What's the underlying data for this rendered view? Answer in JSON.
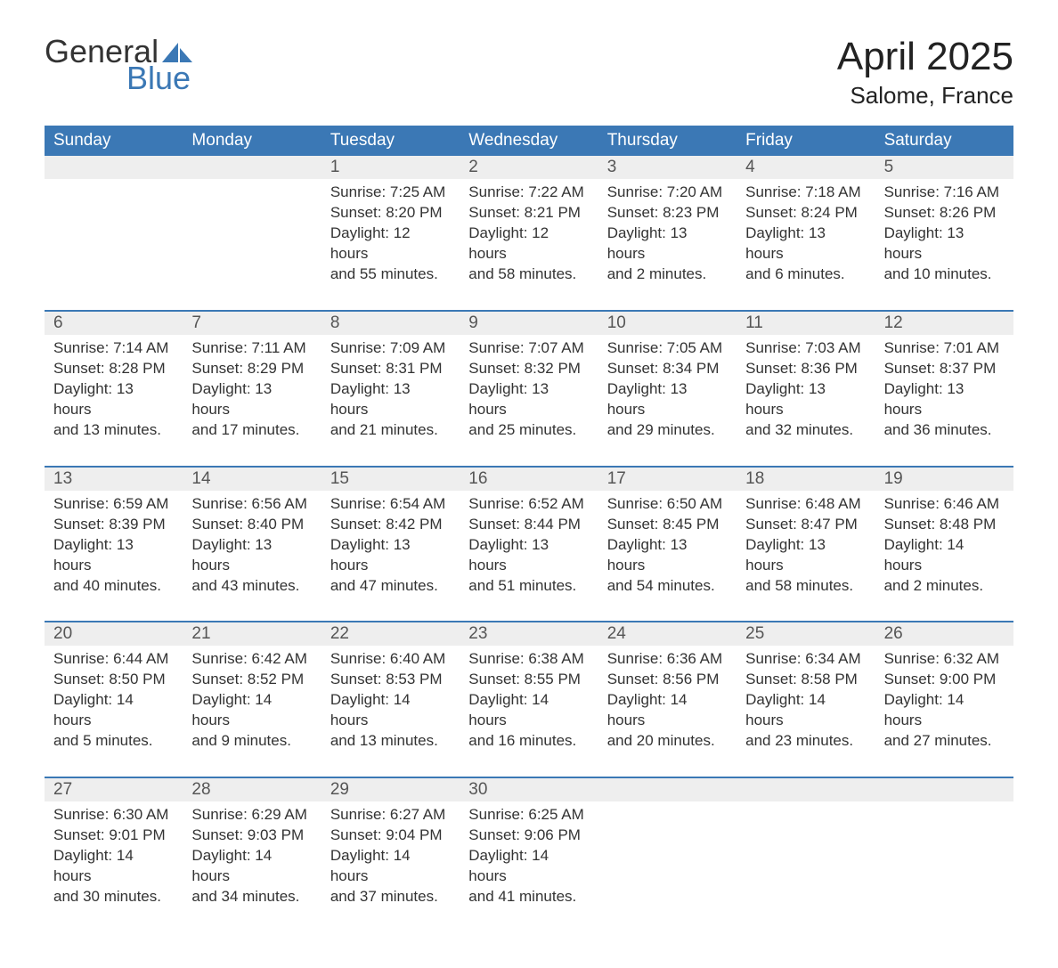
{
  "logo": {
    "word1": "General",
    "word2": "Blue",
    "sail_color": "#3b78b5"
  },
  "title": "April 2025",
  "location": "Salome, France",
  "colors": {
    "header_bg": "#3b78b5",
    "header_text": "#ffffff",
    "strip_bg": "#eeeeee",
    "border": "#3b78b5",
    "text": "#333333"
  },
  "weekdays": [
    "Sunday",
    "Monday",
    "Tuesday",
    "Wednesday",
    "Thursday",
    "Friday",
    "Saturday"
  ],
  "weeks": [
    [
      {
        "n": "",
        "l1": "",
        "l2": "",
        "l3": "",
        "l4": ""
      },
      {
        "n": "",
        "l1": "",
        "l2": "",
        "l3": "",
        "l4": ""
      },
      {
        "n": "1",
        "l1": "Sunrise: 7:25 AM",
        "l2": "Sunset: 8:20 PM",
        "l3": "Daylight: 12 hours",
        "l4": "and 55 minutes."
      },
      {
        "n": "2",
        "l1": "Sunrise: 7:22 AM",
        "l2": "Sunset: 8:21 PM",
        "l3": "Daylight: 12 hours",
        "l4": "and 58 minutes."
      },
      {
        "n": "3",
        "l1": "Sunrise: 7:20 AM",
        "l2": "Sunset: 8:23 PM",
        "l3": "Daylight: 13 hours",
        "l4": "and 2 minutes."
      },
      {
        "n": "4",
        "l1": "Sunrise: 7:18 AM",
        "l2": "Sunset: 8:24 PM",
        "l3": "Daylight: 13 hours",
        "l4": "and 6 minutes."
      },
      {
        "n": "5",
        "l1": "Sunrise: 7:16 AM",
        "l2": "Sunset: 8:26 PM",
        "l3": "Daylight: 13 hours",
        "l4": "and 10 minutes."
      }
    ],
    [
      {
        "n": "6",
        "l1": "Sunrise: 7:14 AM",
        "l2": "Sunset: 8:28 PM",
        "l3": "Daylight: 13 hours",
        "l4": "and 13 minutes."
      },
      {
        "n": "7",
        "l1": "Sunrise: 7:11 AM",
        "l2": "Sunset: 8:29 PM",
        "l3": "Daylight: 13 hours",
        "l4": "and 17 minutes."
      },
      {
        "n": "8",
        "l1": "Sunrise: 7:09 AM",
        "l2": "Sunset: 8:31 PM",
        "l3": "Daylight: 13 hours",
        "l4": "and 21 minutes."
      },
      {
        "n": "9",
        "l1": "Sunrise: 7:07 AM",
        "l2": "Sunset: 8:32 PM",
        "l3": "Daylight: 13 hours",
        "l4": "and 25 minutes."
      },
      {
        "n": "10",
        "l1": "Sunrise: 7:05 AM",
        "l2": "Sunset: 8:34 PM",
        "l3": "Daylight: 13 hours",
        "l4": "and 29 minutes."
      },
      {
        "n": "11",
        "l1": "Sunrise: 7:03 AM",
        "l2": "Sunset: 8:36 PM",
        "l3": "Daylight: 13 hours",
        "l4": "and 32 minutes."
      },
      {
        "n": "12",
        "l1": "Sunrise: 7:01 AM",
        "l2": "Sunset: 8:37 PM",
        "l3": "Daylight: 13 hours",
        "l4": "and 36 minutes."
      }
    ],
    [
      {
        "n": "13",
        "l1": "Sunrise: 6:59 AM",
        "l2": "Sunset: 8:39 PM",
        "l3": "Daylight: 13 hours",
        "l4": "and 40 minutes."
      },
      {
        "n": "14",
        "l1": "Sunrise: 6:56 AM",
        "l2": "Sunset: 8:40 PM",
        "l3": "Daylight: 13 hours",
        "l4": "and 43 minutes."
      },
      {
        "n": "15",
        "l1": "Sunrise: 6:54 AM",
        "l2": "Sunset: 8:42 PM",
        "l3": "Daylight: 13 hours",
        "l4": "and 47 minutes."
      },
      {
        "n": "16",
        "l1": "Sunrise: 6:52 AM",
        "l2": "Sunset: 8:44 PM",
        "l3": "Daylight: 13 hours",
        "l4": "and 51 minutes."
      },
      {
        "n": "17",
        "l1": "Sunrise: 6:50 AM",
        "l2": "Sunset: 8:45 PM",
        "l3": "Daylight: 13 hours",
        "l4": "and 54 minutes."
      },
      {
        "n": "18",
        "l1": "Sunrise: 6:48 AM",
        "l2": "Sunset: 8:47 PM",
        "l3": "Daylight: 13 hours",
        "l4": "and 58 minutes."
      },
      {
        "n": "19",
        "l1": "Sunrise: 6:46 AM",
        "l2": "Sunset: 8:48 PM",
        "l3": "Daylight: 14 hours",
        "l4": "and 2 minutes."
      }
    ],
    [
      {
        "n": "20",
        "l1": "Sunrise: 6:44 AM",
        "l2": "Sunset: 8:50 PM",
        "l3": "Daylight: 14 hours",
        "l4": "and 5 minutes."
      },
      {
        "n": "21",
        "l1": "Sunrise: 6:42 AM",
        "l2": "Sunset: 8:52 PM",
        "l3": "Daylight: 14 hours",
        "l4": "and 9 minutes."
      },
      {
        "n": "22",
        "l1": "Sunrise: 6:40 AM",
        "l2": "Sunset: 8:53 PM",
        "l3": "Daylight: 14 hours",
        "l4": "and 13 minutes."
      },
      {
        "n": "23",
        "l1": "Sunrise: 6:38 AM",
        "l2": "Sunset: 8:55 PM",
        "l3": "Daylight: 14 hours",
        "l4": "and 16 minutes."
      },
      {
        "n": "24",
        "l1": "Sunrise: 6:36 AM",
        "l2": "Sunset: 8:56 PM",
        "l3": "Daylight: 14 hours",
        "l4": "and 20 minutes."
      },
      {
        "n": "25",
        "l1": "Sunrise: 6:34 AM",
        "l2": "Sunset: 8:58 PM",
        "l3": "Daylight: 14 hours",
        "l4": "and 23 minutes."
      },
      {
        "n": "26",
        "l1": "Sunrise: 6:32 AM",
        "l2": "Sunset: 9:00 PM",
        "l3": "Daylight: 14 hours",
        "l4": "and 27 minutes."
      }
    ],
    [
      {
        "n": "27",
        "l1": "Sunrise: 6:30 AM",
        "l2": "Sunset: 9:01 PM",
        "l3": "Daylight: 14 hours",
        "l4": "and 30 minutes."
      },
      {
        "n": "28",
        "l1": "Sunrise: 6:29 AM",
        "l2": "Sunset: 9:03 PM",
        "l3": "Daylight: 14 hours",
        "l4": "and 34 minutes."
      },
      {
        "n": "29",
        "l1": "Sunrise: 6:27 AM",
        "l2": "Sunset: 9:04 PM",
        "l3": "Daylight: 14 hours",
        "l4": "and 37 minutes."
      },
      {
        "n": "30",
        "l1": "Sunrise: 6:25 AM",
        "l2": "Sunset: 9:06 PM",
        "l3": "Daylight: 14 hours",
        "l4": "and 41 minutes."
      },
      {
        "n": "",
        "l1": "",
        "l2": "",
        "l3": "",
        "l4": ""
      },
      {
        "n": "",
        "l1": "",
        "l2": "",
        "l3": "",
        "l4": ""
      },
      {
        "n": "",
        "l1": "",
        "l2": "",
        "l3": "",
        "l4": ""
      }
    ]
  ]
}
